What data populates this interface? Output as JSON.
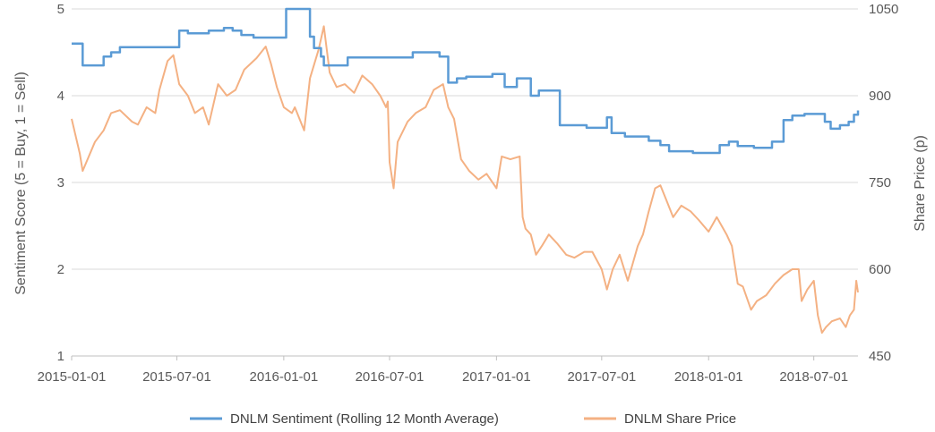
{
  "chart_data": {
    "type": "line",
    "title": "",
    "xlabel": "",
    "ylabel_left": "Sentiment Score (5 = Buy, 1 = Sell)",
    "ylabel_right": "Share Price (p)",
    "ylim_left": [
      1,
      5
    ],
    "ylim_right": [
      450,
      1050
    ],
    "yticks_left": [
      "1",
      "2",
      "3",
      "4",
      "5"
    ],
    "yticks_right": [
      "450",
      "600",
      "750",
      "900",
      "1050"
    ],
    "xlim": [
      "2015-01-01",
      "2018-09-15"
    ],
    "xticks": [
      "2015-01-01",
      "2015-07-01",
      "2016-01-01",
      "2016-07-01",
      "2017-01-01",
      "2017-07-01",
      "2018-01-01",
      "2018-07-01"
    ],
    "grid": true,
    "legend_position": "bottom",
    "series": [
      {
        "name": "DNLM Sentiment (Rolling 12 Month Average)",
        "axis": "left",
        "color": "#5b9bd5",
        "step": true,
        "points": [
          [
            "2015-01-01",
            4.6
          ],
          [
            "2015-01-20",
            4.35
          ],
          [
            "2015-02-25",
            4.45
          ],
          [
            "2015-03-10",
            4.5
          ],
          [
            "2015-03-25",
            4.56
          ],
          [
            "2015-07-05",
            4.75
          ],
          [
            "2015-07-20",
            4.72
          ],
          [
            "2015-08-25",
            4.75
          ],
          [
            "2015-09-20",
            4.78
          ],
          [
            "2015-10-05",
            4.75
          ],
          [
            "2015-10-20",
            4.7
          ],
          [
            "2015-11-10",
            4.67
          ],
          [
            "2016-01-05",
            5.0
          ],
          [
            "2016-02-15",
            4.68
          ],
          [
            "2016-02-22",
            4.55
          ],
          [
            "2016-03-05",
            4.45
          ],
          [
            "2016-03-10",
            4.35
          ],
          [
            "2016-04-20",
            4.44
          ],
          [
            "2016-08-10",
            4.5
          ],
          [
            "2016-09-25",
            4.45
          ],
          [
            "2016-10-10",
            4.15
          ],
          [
            "2016-10-25",
            4.2
          ],
          [
            "2016-11-10",
            4.22
          ],
          [
            "2016-12-25",
            4.25
          ],
          [
            "2017-01-15",
            4.1
          ],
          [
            "2017-02-05",
            4.2
          ],
          [
            "2017-03-01",
            4.0
          ],
          [
            "2017-03-15",
            4.06
          ],
          [
            "2017-04-20",
            3.66
          ],
          [
            "2017-06-05",
            3.63
          ],
          [
            "2017-07-10",
            3.75
          ],
          [
            "2017-07-18",
            3.57
          ],
          [
            "2017-08-10",
            3.53
          ],
          [
            "2017-09-20",
            3.48
          ],
          [
            "2017-10-10",
            3.43
          ],
          [
            "2017-10-25",
            3.36
          ],
          [
            "2017-12-05",
            3.34
          ],
          [
            "2018-01-20",
            3.43
          ],
          [
            "2018-02-05",
            3.47
          ],
          [
            "2018-02-20",
            3.42
          ],
          [
            "2018-03-20",
            3.4
          ],
          [
            "2018-04-20",
            3.47
          ],
          [
            "2018-05-10",
            3.72
          ],
          [
            "2018-05-25",
            3.77
          ],
          [
            "2018-06-15",
            3.79
          ],
          [
            "2018-07-20",
            3.7
          ],
          [
            "2018-07-30",
            3.62
          ],
          [
            "2018-08-15",
            3.66
          ],
          [
            "2018-08-30",
            3.7
          ],
          [
            "2018-09-08",
            3.78
          ],
          [
            "2018-09-15",
            3.83
          ]
        ]
      },
      {
        "name": "DNLM Share Price",
        "axis": "right",
        "color": "#f4b183",
        "step": false,
        "points": [
          [
            "2015-01-01",
            860
          ],
          [
            "2015-01-15",
            800
          ],
          [
            "2015-01-20",
            770
          ],
          [
            "2015-02-10",
            820
          ],
          [
            "2015-02-25",
            840
          ],
          [
            "2015-03-10",
            870
          ],
          [
            "2015-03-25",
            875
          ],
          [
            "2015-04-15",
            855
          ],
          [
            "2015-04-25",
            850
          ],
          [
            "2015-05-10",
            880
          ],
          [
            "2015-05-25",
            870
          ],
          [
            "2015-06-01",
            910
          ],
          [
            "2015-06-15",
            960
          ],
          [
            "2015-06-25",
            970
          ],
          [
            "2015-07-05",
            920
          ],
          [
            "2015-07-20",
            900
          ],
          [
            "2015-08-01",
            870
          ],
          [
            "2015-08-15",
            880
          ],
          [
            "2015-08-25",
            850
          ],
          [
            "2015-09-10",
            920
          ],
          [
            "2015-09-25",
            900
          ],
          [
            "2015-10-10",
            910
          ],
          [
            "2015-10-25",
            945
          ],
          [
            "2015-11-15",
            965
          ],
          [
            "2015-12-01",
            985
          ],
          [
            "2015-12-10",
            955
          ],
          [
            "2015-12-20",
            915
          ],
          [
            "2016-01-01",
            880
          ],
          [
            "2016-01-15",
            870
          ],
          [
            "2016-01-20",
            880
          ],
          [
            "2016-02-05",
            840
          ],
          [
            "2016-02-15",
            930
          ],
          [
            "2016-03-01",
            980
          ],
          [
            "2016-03-10",
            1020
          ],
          [
            "2016-03-20",
            940
          ],
          [
            "2016-04-01",
            915
          ],
          [
            "2016-04-15",
            920
          ],
          [
            "2016-05-01",
            905
          ],
          [
            "2016-05-15",
            935
          ],
          [
            "2016-06-01",
            920
          ],
          [
            "2016-06-15",
            900
          ],
          [
            "2016-06-25",
            880
          ],
          [
            "2016-06-28",
            890
          ],
          [
            "2016-07-01",
            785
          ],
          [
            "2016-07-08",
            740
          ],
          [
            "2016-07-15",
            820
          ],
          [
            "2016-08-01",
            855
          ],
          [
            "2016-08-15",
            870
          ],
          [
            "2016-09-01",
            880
          ],
          [
            "2016-09-15",
            910
          ],
          [
            "2016-10-01",
            920
          ],
          [
            "2016-10-10",
            880
          ],
          [
            "2016-10-20",
            860
          ],
          [
            "2016-11-01",
            790
          ],
          [
            "2016-11-15",
            770
          ],
          [
            "2016-12-01",
            755
          ],
          [
            "2016-12-15",
            765
          ],
          [
            "2017-01-01",
            740
          ],
          [
            "2017-01-10",
            795
          ],
          [
            "2017-01-25",
            790
          ],
          [
            "2017-02-10",
            795
          ],
          [
            "2017-02-15",
            690
          ],
          [
            "2017-02-20",
            670
          ],
          [
            "2017-03-01",
            660
          ],
          [
            "2017-03-10",
            625
          ],
          [
            "2017-03-20",
            640
          ],
          [
            "2017-04-01",
            660
          ],
          [
            "2017-04-15",
            645
          ],
          [
            "2017-05-01",
            625
          ],
          [
            "2017-05-15",
            620
          ],
          [
            "2017-06-01",
            630
          ],
          [
            "2017-06-15",
            630
          ],
          [
            "2017-07-01",
            600
          ],
          [
            "2017-07-10",
            565
          ],
          [
            "2017-07-20",
            600
          ],
          [
            "2017-08-01",
            625
          ],
          [
            "2017-08-15",
            580
          ],
          [
            "2017-09-01",
            640
          ],
          [
            "2017-09-10",
            660
          ],
          [
            "2017-09-20",
            700
          ],
          [
            "2017-10-01",
            740
          ],
          [
            "2017-10-10",
            745
          ],
          [
            "2017-10-20",
            720
          ],
          [
            "2017-11-01",
            690
          ],
          [
            "2017-11-15",
            710
          ],
          [
            "2017-12-01",
            700
          ],
          [
            "2017-12-15",
            685
          ],
          [
            "2018-01-01",
            665
          ],
          [
            "2018-01-15",
            690
          ],
          [
            "2018-02-01",
            660
          ],
          [
            "2018-02-10",
            640
          ],
          [
            "2018-02-20",
            575
          ],
          [
            "2018-03-01",
            570
          ],
          [
            "2018-03-15",
            530
          ],
          [
            "2018-03-25",
            545
          ],
          [
            "2018-04-10",
            555
          ],
          [
            "2018-04-25",
            575
          ],
          [
            "2018-05-10",
            590
          ],
          [
            "2018-05-25",
            600
          ],
          [
            "2018-06-05",
            600
          ],
          [
            "2018-06-10",
            545
          ],
          [
            "2018-06-20",
            565
          ],
          [
            "2018-07-01",
            580
          ],
          [
            "2018-07-08",
            520
          ],
          [
            "2018-07-15",
            490
          ],
          [
            "2018-07-22",
            500
          ],
          [
            "2018-08-01",
            510
          ],
          [
            "2018-08-15",
            515
          ],
          [
            "2018-08-25",
            500
          ],
          [
            "2018-09-01",
            520
          ],
          [
            "2018-09-08",
            530
          ],
          [
            "2018-09-12",
            580
          ],
          [
            "2018-09-15",
            560
          ]
        ]
      }
    ]
  }
}
